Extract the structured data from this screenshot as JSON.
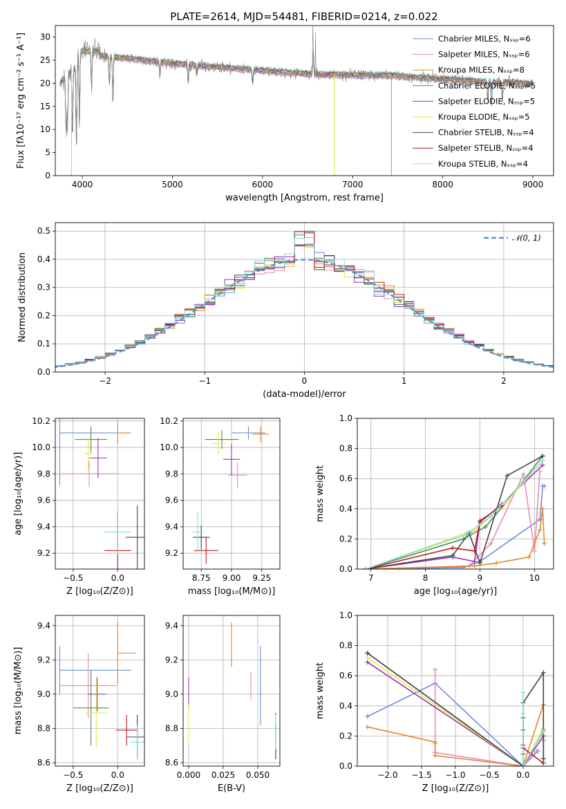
{
  "figure": {
    "title": "PLATE=2614, MJD=54481, FIBERID=0214, z=0.022"
  },
  "chart_data": [
    {
      "id": "spectrum",
      "type": "line",
      "xlabel": "wavelength [Angstrom, rest frame]",
      "ylabel": "Flux [fλ10⁻¹⁷ erg cm⁻² s⁻¹ A⁻¹]",
      "xlim": [
        3700,
        9230
      ],
      "ylim": [
        0,
        32.5
      ],
      "xticks": [
        4000,
        5000,
        6000,
        7000,
        8000,
        9000
      ],
      "yticks": [
        0,
        5,
        10,
        15,
        20,
        25,
        30
      ],
      "grid": false,
      "legend_position": "top-right",
      "data_color": "#808080",
      "series": [
        {
          "name": "Chabrier MILES, Nₛₛₚ=6",
          "color": "#6a8fd8"
        },
        {
          "name": "Salpeter MILES, Nₛₛₚ=6",
          "color": "#e68ab8"
        },
        {
          "name": "Kroupa MILES, Nₛₛₚ=8",
          "color": "#e6842a"
        },
        {
          "name": "Chabrier ELODIE, Nₛₛₚ=5",
          "color": "#4d8a4d"
        },
        {
          "name": "Salpeter ELODIE, Nₛₛₚ=5",
          "color": "#9a2fb8"
        },
        {
          "name": "Kroupa ELODIE, Nₛₛₚ=5",
          "color": "#e6e64d"
        },
        {
          "name": "Chabrier STELIB, Nₛₛₚ=4",
          "color": "#444444"
        },
        {
          "name": "Salpeter STELIB, Nₛₛₚ=4",
          "color": "#b81c1c"
        },
        {
          "name": "Kroupa STELIB, Nₛₛₚ=4",
          "color": "#7ee0e0"
        }
      ],
      "dropouts": [
        {
          "x": 3880,
          "y": 0,
          "color": "#7ee0e0"
        },
        {
          "x": 6800,
          "y": 0,
          "color": "#e6e64d"
        },
        {
          "x": 7430,
          "y": 0,
          "color": "#e6842a"
        }
      ]
    },
    {
      "id": "residuals",
      "type": "bar",
      "xlabel": "(data-model)/error",
      "ylabel": "Normed distribution",
      "xlim": [
        -2.5,
        2.5
      ],
      "ylim": [
        0,
        0.53
      ],
      "xticks": [
        -2,
        -1,
        0,
        1,
        2
      ],
      "yticks": [
        0.0,
        0.1,
        0.2,
        0.3,
        0.4,
        0.5
      ],
      "grid": true,
      "legend": {
        "label": "𝒩(0, 1)",
        "position": "top-right"
      },
      "bin_width": 0.1,
      "bin_start": -2.5
    },
    {
      "id": "age-vs-Z",
      "type": "scatter",
      "xlabel": "Z [log₁₀(Z/Z⊙)]",
      "ylabel": "age  [log₁₀(age/yr)]",
      "xlim": [
        -0.7,
        0.3
      ],
      "ylim": [
        9.08,
        10.22
      ],
      "xticks": [
        -0.5,
        0.0
      ],
      "yticks": [
        9.2,
        9.4,
        9.6,
        9.8,
        10.0,
        10.2
      ],
      "grid": true,
      "points": [
        {
          "x": -0.65,
          "y": 10.11,
          "xerr": [
            0.0,
            0.8
          ],
          "yerr": 0.4,
          "color": "#6a8fd8"
        },
        {
          "x": -0.32,
          "y": 9.8,
          "xerr": 0.32,
          "yerr": 0.1,
          "color": "#e68ab8"
        },
        {
          "x": 0.0,
          "y": 10.11,
          "xerr": [
            0.0,
            0.15
          ],
          "yerr": 0.08,
          "color": "#e6842a"
        },
        {
          "x": -0.3,
          "y": 10.06,
          "xerr": 0.18,
          "yerr": 0.1,
          "color": "#4d8a4d"
        },
        {
          "x": -0.22,
          "y": 9.92,
          "xerr": 0.1,
          "yerr": 0.15,
          "color": "#9a2fb8"
        },
        {
          "x": -0.33,
          "y": 9.95,
          "xerr": 0.05,
          "yerr": 0.12,
          "color": "#e6e64d"
        },
        {
          "x": 0.22,
          "y": 9.32,
          "xerr": 0.13,
          "yerr": 0.24,
          "color": "#444444"
        },
        {
          "x": 0.0,
          "y": 9.22,
          "xerr": 0.15,
          "yerr": 0.3,
          "color": "#b81c1c"
        },
        {
          "x": 0.0,
          "y": 9.36,
          "xerr": 0.15,
          "yerr": 0.17,
          "color": "#7ee0e0"
        }
      ]
    },
    {
      "id": "age-vs-mass",
      "type": "scatter",
      "xlabel": "mass [log₁₀(M/M⊙)]",
      "ylabel": "",
      "xlim": [
        8.6,
        9.4
      ],
      "ylim": [
        9.08,
        10.22
      ],
      "xticks": [
        8.75,
        9.0,
        9.25
      ],
      "yticks": [
        9.2,
        9.4,
        9.6,
        9.8,
        10.0,
        10.2
      ],
      "grid": true,
      "points": [
        {
          "x": 9.14,
          "y": 10.11,
          "xerr": 0.14,
          "yerr": 0.05,
          "color": "#6a8fd8"
        },
        {
          "x": 9.05,
          "y": 9.79,
          "xerr": 0.08,
          "yerr": 0.1,
          "color": "#e68ab8"
        },
        {
          "x": 9.24,
          "y": 10.1,
          "xerr": 0.07,
          "yerr": 0.06,
          "color": "#e6842a"
        },
        {
          "x": 8.92,
          "y": 10.06,
          "xerr": 0.14,
          "yerr": 0.07,
          "color": "#4d8a4d"
        },
        {
          "x": 9.0,
          "y": 9.91,
          "xerr": 0.07,
          "yerr": 0.12,
          "color": "#9a2fb8"
        },
        {
          "x": 8.89,
          "y": 10.03,
          "xerr": 0.06,
          "yerr": 0.09,
          "color": "#e6e64d"
        },
        {
          "x": 8.75,
          "y": 9.32,
          "xerr": 0.07,
          "yerr": 0.09,
          "color": "#444444"
        },
        {
          "x": 8.79,
          "y": 9.22,
          "xerr": 0.1,
          "yerr": 0.1,
          "color": "#b81c1c"
        },
        {
          "x": 8.72,
          "y": 9.36,
          "xerr": 0.05,
          "yerr": 0.15,
          "color": "#7ee0e0"
        }
      ]
    },
    {
      "id": "massweight-vs-age",
      "type": "line",
      "xlabel": "age  [log₁₀(age/yr)]",
      "ylabel": "mass weight",
      "xlim": [
        6.75,
        10.35
      ],
      "ylim": [
        0,
        1.0
      ],
      "xticks": [
        7,
        8,
        9,
        10
      ],
      "yticks": [
        0.0,
        0.2,
        0.4,
        0.6,
        0.8,
        1.0
      ],
      "grid": true,
      "series": [
        {
          "color": "#6a8fd8",
          "x": [
            6.9,
            8.7,
            9.0,
            10.1,
            10.15,
            10.18
          ],
          "y": [
            0.0,
            0.01,
            0.05,
            0.33,
            0.55,
            0.55
          ]
        },
        {
          "color": "#e68ab8",
          "x": [
            6.9,
            8.8,
            9.2,
            9.8,
            10.0,
            10.1
          ],
          "y": [
            0.0,
            0.02,
            0.17,
            0.63,
            0.12,
            0.65
          ]
        },
        {
          "color": "#e6842a",
          "x": [
            6.9,
            8.9,
            9.3,
            9.9,
            10.1,
            10.15,
            10.18
          ],
          "y": [
            0.0,
            0.02,
            0.04,
            0.08,
            0.26,
            0.4,
            0.17
          ]
        },
        {
          "color": "#4d8a4d",
          "x": [
            6.9,
            8.7,
            9.1,
            9.5,
            10.15
          ],
          "y": [
            0.0,
            0.2,
            0.28,
            0.45,
            0.75
          ]
        },
        {
          "color": "#9a2fb8",
          "x": [
            6.9,
            8.5,
            8.9,
            9.0,
            9.4,
            10.15
          ],
          "y": [
            0.0,
            0.08,
            0.05,
            0.31,
            0.43,
            0.69
          ]
        },
        {
          "color": "#e6e64d",
          "x": [
            6.9,
            8.75,
            8.9,
            9.5,
            10.15
          ],
          "y": [
            0.0,
            0.24,
            0.25,
            0.45,
            0.72
          ]
        },
        {
          "color": "#444444",
          "x": [
            6.9,
            8.5,
            8.8,
            9.0,
            9.5,
            10.15
          ],
          "y": [
            0.0,
            0.09,
            0.24,
            0.04,
            0.62,
            0.75
          ]
        },
        {
          "color": "#b81c1c",
          "x": [
            6.9,
            8.5,
            8.9,
            9.0,
            9.4
          ],
          "y": [
            0.0,
            0.14,
            0.12,
            0.32,
            0.42
          ]
        },
        {
          "color": "#7ee0e0",
          "x": [
            6.9,
            8.75,
            9.2,
            10.15
          ],
          "y": [
            0.0,
            0.23,
            0.35,
            0.72
          ]
        }
      ]
    },
    {
      "id": "mass-vs-Z",
      "type": "scatter",
      "xlabel": "Z [log₁₀(Z/Z⊙)]",
      "ylabel": "mass [log₁₀(M/M⊙)]",
      "xlim": [
        -0.7,
        0.3
      ],
      "ylim": [
        8.58,
        9.46
      ],
      "xticks": [
        -0.5,
        0.0
      ],
      "yticks": [
        8.6,
        8.8,
        9.0,
        9.2,
        9.4
      ],
      "grid": true,
      "points": [
        {
          "x": -0.65,
          "y": 9.14,
          "xerr": [
            0.0,
            0.8
          ],
          "yerr": 0.14,
          "color": "#6a8fd8"
        },
        {
          "x": -0.33,
          "y": 9.05,
          "xerr": 0.32,
          "yerr": 0.19,
          "color": "#e68ab8"
        },
        {
          "x": 0.0,
          "y": 9.24,
          "xerr": [
            0.0,
            0.2
          ],
          "yerr": 0.18,
          "color": "#e6842a"
        },
        {
          "x": -0.3,
          "y": 8.92,
          "xerr": 0.2,
          "yerr": 0.22,
          "color": "#4d8a4d"
        },
        {
          "x": -0.23,
          "y": 9.0,
          "xerr": 0.1,
          "yerr": 0.1,
          "color": "#9a2fb8"
        },
        {
          "x": -0.24,
          "y": 8.89,
          "xerr": 0.13,
          "yerr": 0.2,
          "color": "#e6e64d"
        },
        {
          "x": 0.22,
          "y": 8.75,
          "xerr": 0.12,
          "yerr": 0.13,
          "color": "#444444"
        },
        {
          "x": 0.1,
          "y": 8.79,
          "xerr": 0.12,
          "yerr": 0.09,
          "color": "#b81c1c"
        },
        {
          "x": 0.22,
          "y": 8.72,
          "xerr": 0.08,
          "yerr": 0.1,
          "color": "#7ee0e0"
        }
      ]
    },
    {
      "id": "mass-vs-ebv",
      "type": "scatter",
      "xlabel": "E(B-V)",
      "ylabel": "",
      "xlim": [
        -0.004,
        0.066
      ],
      "ylim": [
        8.58,
        9.46
      ],
      "xticks": [
        0.0,
        0.025,
        0.05
      ],
      "yticks": [
        8.6,
        8.8,
        9.0,
        9.2,
        9.4
      ],
      "grid": true,
      "points": [
        {
          "x": 0.052,
          "y": 9.05,
          "yerr": 0.23,
          "color": "#6a8fd8"
        },
        {
          "x": 0.045,
          "y": 9.05,
          "yerr": 0.08,
          "color": "#e68ab8"
        },
        {
          "x": 0.031,
          "y": 9.29,
          "yerr": 0.13,
          "color": "#e6842a"
        },
        {
          "x": 0.063,
          "y": 8.72,
          "yerr": 0.1,
          "color": "#4d8a4d"
        },
        {
          "x": 0.0,
          "y": 9.0,
          "yerr": 0.1,
          "color": "#9a2fb8"
        },
        {
          "x": 0.0,
          "y": 8.82,
          "yerr": 0.12,
          "color": "#e6e64d"
        },
        {
          "x": 0.063,
          "y": 8.72,
          "yerr": 0.1,
          "color": "#444444"
        },
        {
          "x": 0.063,
          "y": 8.81,
          "yerr": 0.08,
          "color": "#b81c1c"
        },
        {
          "x": 0.063,
          "y": 8.78,
          "yerr": 0.1,
          "color": "#7ee0e0"
        }
      ]
    },
    {
      "id": "massweight-vs-Z",
      "type": "line",
      "xlabel": "Z [log₁₀(Z/Z⊙)]",
      "ylabel": "mass weight",
      "xlim": [
        -2.45,
        0.45
      ],
      "ylim": [
        0,
        1.0
      ],
      "xticks": [
        -2.0,
        -1.5,
        -1.0,
        -0.5,
        0.0
      ],
      "yticks": [
        0.0,
        0.2,
        0.4,
        0.6,
        0.8,
        1.0
      ],
      "grid": true,
      "series": [
        {
          "color": "#6a8fd8",
          "x": [
            -2.3,
            -1.3,
            0.0,
            0.22
          ],
          "y": [
            0.33,
            0.55,
            0.0,
            0.1
          ]
        },
        {
          "color": "#e68ab8",
          "x": [
            -1.3,
            -1.3,
            -1.3,
            0.0,
            0.2
          ],
          "y": [
            0.64,
            0.15,
            0.09,
            0.0,
            0.1
          ]
        },
        {
          "color": "#e6842a",
          "x": [
            -2.3,
            -1.3,
            -1.3,
            0.0,
            0.3,
            0.3,
            0.3
          ],
          "y": [
            0.26,
            0.16,
            0.07,
            0.0,
            0.41,
            0.03,
            0.17
          ]
        },
        {
          "color": "#4d8a4d",
          "x": [
            -2.3,
            0.0,
            0.3,
            0.3
          ],
          "y": [
            0.75,
            0.0,
            0.24,
            0.05
          ]
        },
        {
          "color": "#9a2fb8",
          "x": [
            -2.3,
            0.0,
            0.3,
            0.3
          ],
          "y": [
            0.69,
            0.0,
            0.2,
            0.03
          ]
        },
        {
          "color": "#e6e64d",
          "x": [
            -2.3,
            0.0,
            0.3,
            0.3
          ],
          "y": [
            0.72,
            0.0,
            0.25,
            0.03
          ]
        },
        {
          "color": "#444444",
          "x": [
            -2.3,
            0.0,
            0.0,
            0.0,
            0.0,
            0.3,
            0.3
          ],
          "y": [
            0.75,
            0.0,
            0.08,
            0.24,
            0.42,
            0.62,
            0.05
          ]
        },
        {
          "color": "#b81c1c",
          "x": [
            0.0,
            0.0,
            0.0,
            0.3
          ],
          "y": [
            0.14,
            0.32,
            0.12,
            0.02
          ]
        },
        {
          "color": "#7ee0e0",
          "x": [
            0.0,
            0.0,
            0.0,
            0.3
          ],
          "y": [
            0.49,
            0.35,
            0.0,
            0.23
          ]
        }
      ]
    }
  ]
}
